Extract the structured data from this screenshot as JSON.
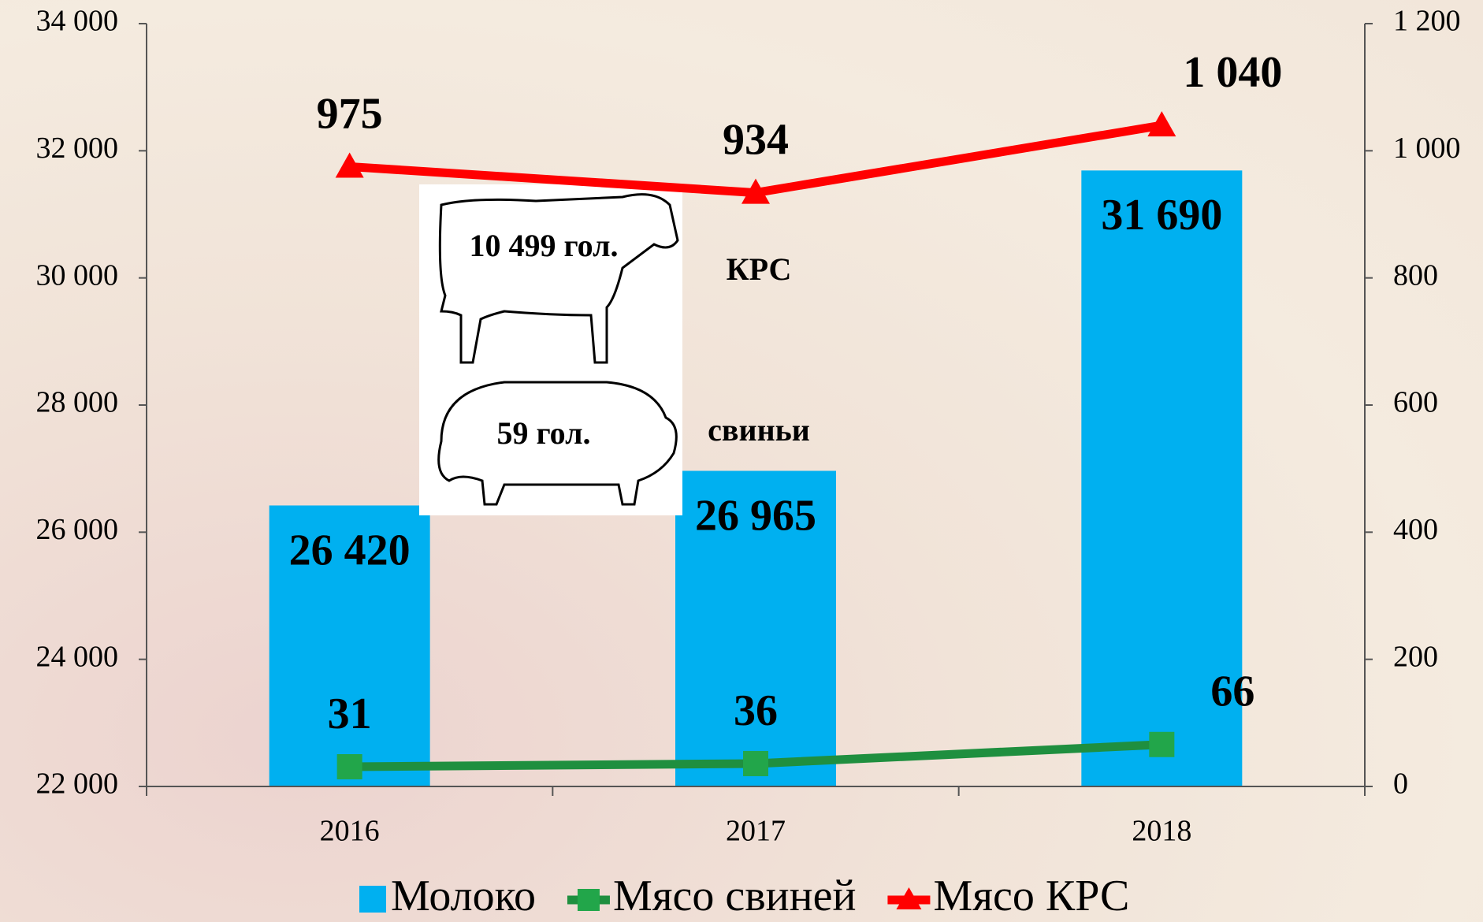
{
  "chart_data": {
    "type": "bar",
    "categories": [
      "2016",
      "2017",
      "2018"
    ],
    "series": [
      {
        "name": "Молоко",
        "type": "bar",
        "color": "#00b0f0",
        "values": [
          26420,
          26965,
          31690
        ],
        "value_labels": [
          "26 420",
          "26 965",
          "31 690"
        ]
      },
      {
        "name": "Мясо свиней",
        "type": "line",
        "axis": "y2",
        "color": "#1f8f3f",
        "marker_color": "#22a64a",
        "values": [
          31,
          36,
          66
        ]
      },
      {
        "name": "Мясо КРС",
        "type": "line",
        "axis": "y2",
        "color": "#ff0000",
        "values": [
          975,
          934,
          1040
        ],
        "value_labels": [
          "975",
          "934",
          "1 040"
        ]
      }
    ],
    "ylim": [
      22000,
      34000
    ],
    "yticks": [
      {
        "value": 22000,
        "label": "22 000"
      },
      {
        "value": 24000,
        "label": "24 000"
      },
      {
        "value": 26000,
        "label": "26 000"
      },
      {
        "value": 28000,
        "label": "28 000"
      },
      {
        "value": 30000,
        "label": "30 000"
      },
      {
        "value": 32000,
        "label": "32 000"
      },
      {
        "value": 34000,
        "label": "34 000"
      }
    ],
    "y2lim": [
      0,
      1200
    ],
    "y2ticks": [
      0,
      200,
      400,
      600,
      800,
      {
        "value": 1000,
        "label": "1 000"
      },
      {
        "value": 1200,
        "label": "1 200"
      }
    ],
    "annotations": [
      "10 499 гол.",
      "КРС",
      "59 гол.",
      "свиньи"
    ],
    "legend": "bottom"
  }
}
